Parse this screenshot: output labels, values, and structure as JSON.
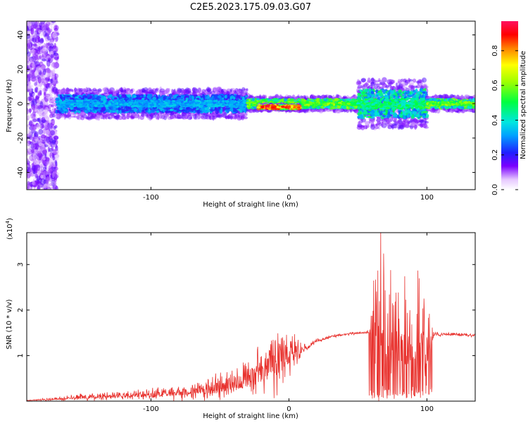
{
  "figure": {
    "title": "C2E5.2023.175.09.03.G07"
  },
  "chart_data": [
    {
      "type": "heatmap",
      "title": "C2E5.2023.175.09.03.G07",
      "xlabel": "Height of straight line (km)",
      "ylabel": "Frequency (Hz)",
      "xlim": [
        -190,
        135
      ],
      "ylim": [
        -50,
        48
      ],
      "xticks": [
        -100,
        0,
        100
      ],
      "xtick_labels": [
        "-100",
        "0",
        "100"
      ],
      "yticks": [
        -40,
        -20,
        0,
        20,
        40
      ],
      "ytick_labels": [
        "-40",
        "-20",
        "0",
        "20",
        "40"
      ],
      "colorbar": {
        "label": "Normalized spectral amplitude",
        "range": [
          0,
          0.97
        ],
        "ticks": [
          0.0,
          0.2,
          0.4,
          0.6,
          0.8
        ],
        "tick_labels": [
          "0.0",
          "0.2",
          "0.4",
          "0.6",
          "0.8"
        ],
        "colormap": "rainbow (white-violet-blue-cyan-green-yellow-red-magenta)"
      },
      "features": [
        {
          "x_range": [
            -190,
            -168
          ],
          "freq_range": [
            -50,
            48
          ],
          "amplitude": 0.15,
          "description": "broadband diffuse noise"
        },
        {
          "x_range": [
            -168,
            -30
          ],
          "center_freq": 0,
          "half_width": 6,
          "amplitude": 0.35
        },
        {
          "x_range": [
            -30,
            50
          ],
          "center_freq": 0,
          "half_width": 3,
          "amplitude": 0.6
        },
        {
          "x_range": [
            -22,
            8
          ],
          "center_freq": -2,
          "half_width": 1,
          "amplitude": 0.9
        },
        {
          "x_range": [
            50,
            100
          ],
          "center_freq": 0,
          "half_width": 10,
          "amplitude": 0.5
        },
        {
          "x_range": [
            100,
            135
          ],
          "center_freq": 0,
          "half_width": 3,
          "amplitude": 0.6
        }
      ],
      "grid": false
    },
    {
      "type": "line",
      "xlabel": "Height of straight line (km)",
      "ylabel": "SNR (10 * v/v)",
      "y_scale_label": "(x10",
      "y_scale_exp": "4",
      "y_scale_close": ")",
      "xlim": [
        -190,
        135
      ],
      "ylim": [
        0,
        3.7
      ],
      "xticks": [
        -100,
        0,
        100
      ],
      "xtick_labels": [
        "-100",
        "0",
        "100"
      ],
      "yticks": [
        1,
        2,
        3
      ],
      "ytick_labels": [
        "1",
        "2",
        "3"
      ],
      "color": "#e8312d",
      "envelope": {
        "x": [
          -190,
          -170,
          -150,
          -120,
          -100,
          -80,
          -60,
          -40,
          -30,
          -20,
          -10,
          0,
          10,
          20,
          30,
          40,
          50,
          58,
          62,
          65,
          70,
          75,
          80,
          85,
          90,
          95,
          100,
          105,
          110,
          120,
          135
        ],
        "base": [
          0.01,
          0.03,
          0.06,
          0.08,
          0.1,
          0.12,
          0.16,
          0.22,
          0.3,
          0.4,
          0.55,
          0.8,
          1.1,
          1.3,
          1.4,
          1.45,
          1.48,
          1.5,
          1.2,
          1.1,
          0.95,
          0.9,
          0.85,
          0.8,
          0.75,
          0.75,
          0.8,
          1.45,
          1.45,
          1.45,
          1.43
        ],
        "spike": [
          0.01,
          0.06,
          0.12,
          0.15,
          0.2,
          0.28,
          0.4,
          0.55,
          0.75,
          0.9,
          1.1,
          0.9,
          0.15,
          0.08,
          0.06,
          0.05,
          0.05,
          0.05,
          2.0,
          3.7,
          2.6,
          2.3,
          2.2,
          2.0,
          2.2,
          2.8,
          1.7,
          0.08,
          0.06,
          0.06,
          0.06
        ]
      },
      "grid": false
    }
  ]
}
